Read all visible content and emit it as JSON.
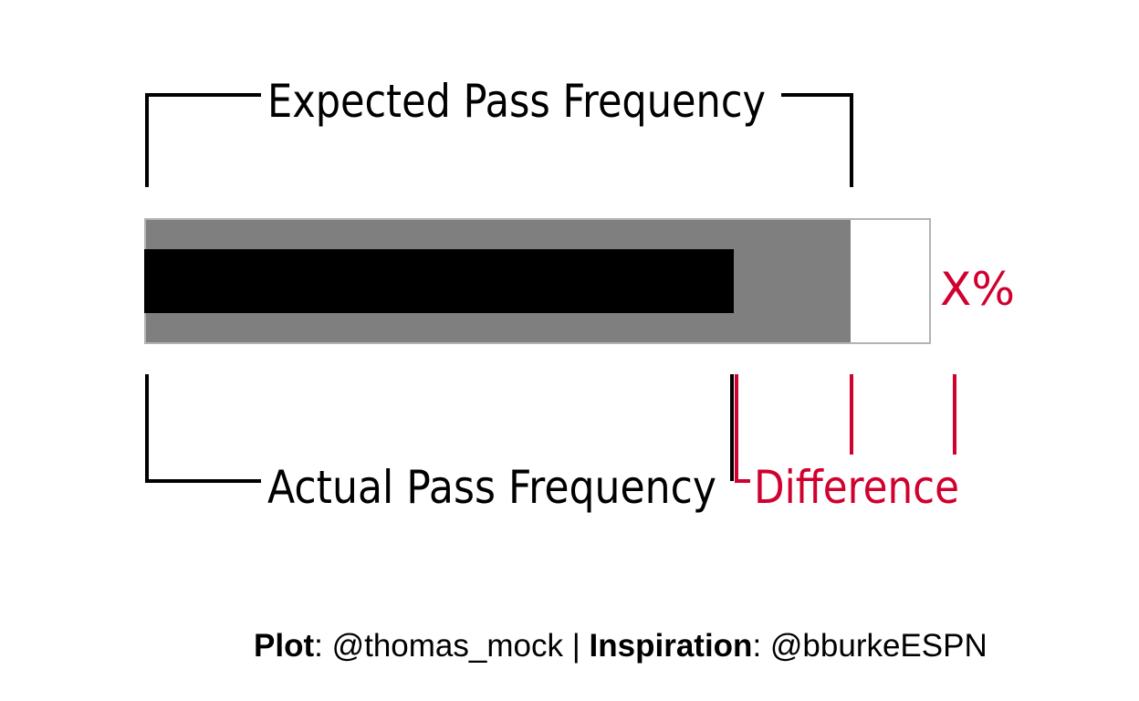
{
  "chart_data": {
    "type": "bar",
    "title": "",
    "annotations": {
      "expected_label": "Expected Pass Frequency",
      "actual_label": "Actual Pass Frequency",
      "difference_label": "Difference",
      "value_label": "X%"
    },
    "bars": {
      "expected_fraction": 0.9,
      "actual_fraction": 0.753
    }
  },
  "colors": {
    "track": "#ffffff",
    "expected": "#7f7f7f",
    "actual": "#000000",
    "accent": "#d0002f"
  },
  "caption": {
    "plot_label": "Plot",
    "plot_handle": "@thomas_mock",
    "separator": "|",
    "inspiration_label": "Inspiration",
    "inspiration_handle": "@bburkeESPN"
  }
}
